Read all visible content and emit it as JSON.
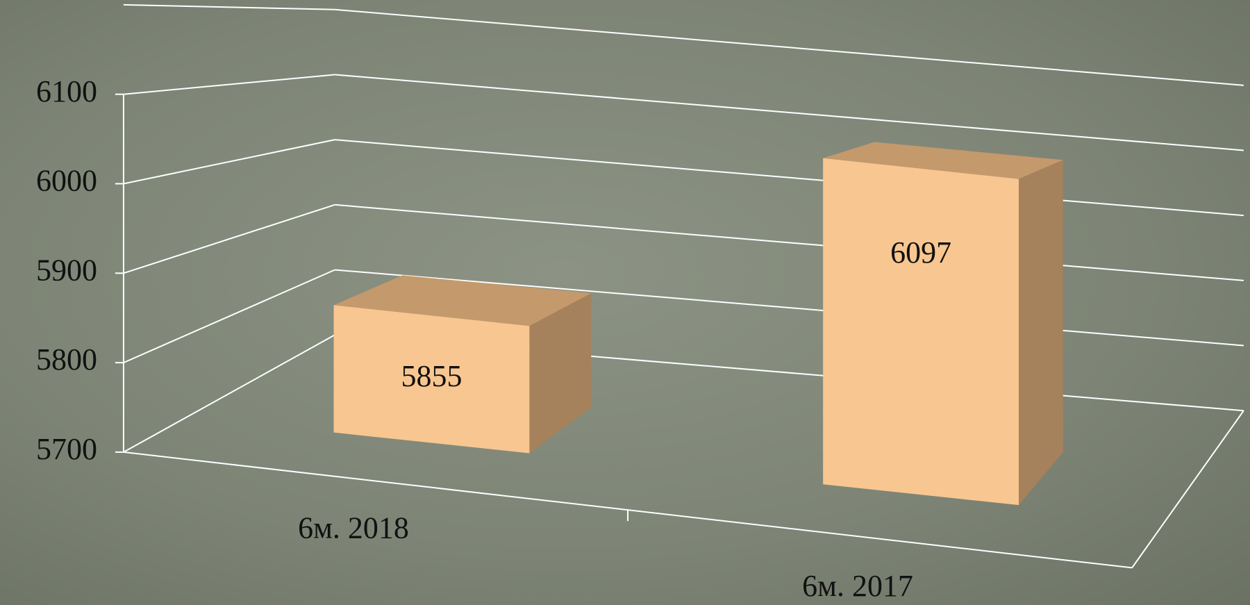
{
  "chart_data": {
    "type": "bar3d",
    "categories": [
      "6м. 2018",
      "6м. 2017"
    ],
    "values": [
      5855,
      6097
    ],
    "colors": {
      "front": "#f8c690",
      "top": "#c4996c",
      "side": "#a5825c"
    },
    "ylim": [
      5700,
      6200
    ],
    "yticks": [
      5700,
      5800,
      5900,
      6000,
      6100
    ],
    "grid": true
  }
}
